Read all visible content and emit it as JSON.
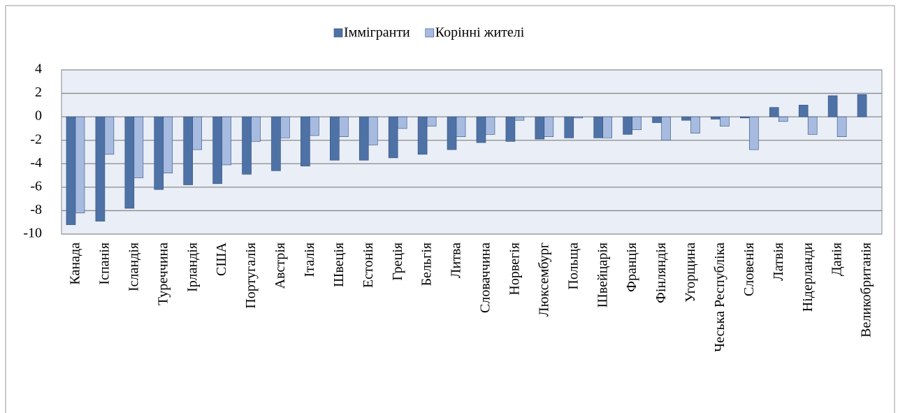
{
  "chart_data": {
    "type": "bar",
    "categories": [
      "Канада",
      "Іспанія",
      "Ісландія",
      "Туреччина",
      "Ірландія",
      "США",
      "Португалія",
      "Австрія",
      "Італія",
      "Швеція",
      "Естонія",
      "Греція",
      "Бельгія",
      "Литва",
      "Словаччина",
      "Норвегія",
      "Люксембург",
      "Польща",
      "Швейцарія",
      "Франція",
      "Фінляндія",
      "Угорщина",
      "Чеська Республіка",
      "Словенія",
      "Латвія",
      "Нідерланди",
      "Данія",
      "Великобританія"
    ],
    "series": [
      {
        "name": "Іммігранти",
        "color": "#4f72a6",
        "values": [
          -9.2,
          -8.9,
          -7.8,
          -6.2,
          -5.8,
          -5.7,
          -4.9,
          -4.6,
          -4.2,
          -3.7,
          -3.7,
          -3.5,
          -3.2,
          -2.8,
          -2.2,
          -2.1,
          -1.9,
          -1.8,
          -1.8,
          -1.5,
          -0.5,
          -0.3,
          -0.2,
          -0.1,
          0.8,
          1.0,
          1.8,
          1.9
        ]
      },
      {
        "name": "Корінні жителі",
        "color": "#a7bbe0",
        "values": [
          -8.2,
          -3.2,
          -5.2,
          -4.8,
          -2.8,
          -4.1,
          -2.1,
          -1.8,
          -1.6,
          -1.7,
          -2.4,
          -1.0,
          -0.8,
          -1.7,
          -1.5,
          -0.3,
          -1.7,
          -0.1,
          -1.8,
          -1.1,
          -2.0,
          -1.4,
          -0.8,
          -2.8,
          -0.4,
          -1.5,
          -1.7,
          null
        ]
      }
    ],
    "ylim": [
      -10,
      4
    ],
    "yticks": [
      -10,
      -8,
      -6,
      -4,
      -2,
      0,
      2,
      4
    ],
    "grid": true,
    "legend": "top"
  }
}
